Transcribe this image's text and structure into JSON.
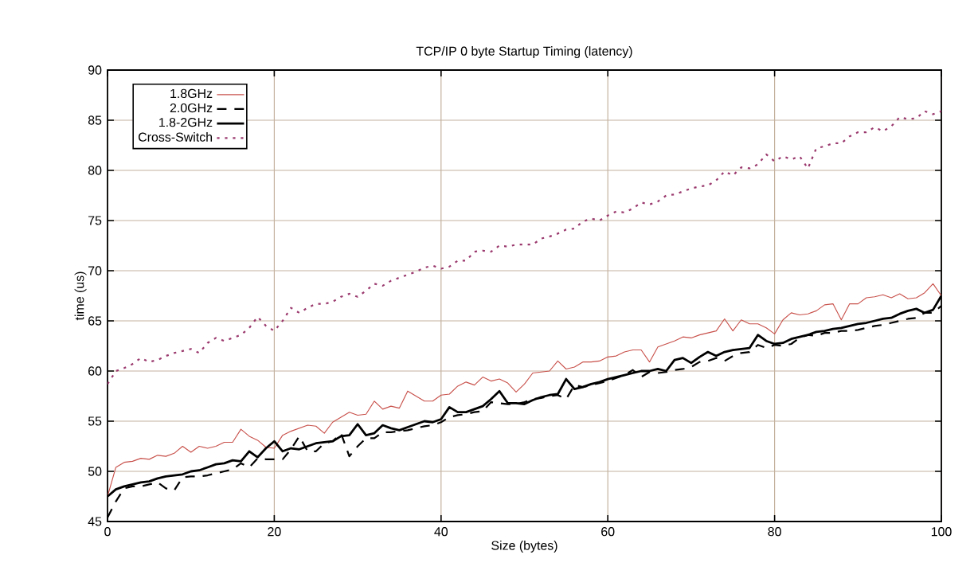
{
  "chart_data": {
    "type": "line",
    "title": "TCP/IP 0 byte Startup Timing (latency)",
    "xlabel": "Size (bytes)",
    "ylabel": "time (us)",
    "x": [
      0,
      1,
      2,
      3,
      4,
      5,
      6,
      7,
      8,
      9,
      10,
      11,
      12,
      13,
      14,
      15,
      16,
      17,
      18,
      19,
      20,
      21,
      22,
      23,
      24,
      25,
      26,
      27,
      28,
      29,
      30,
      31,
      32,
      33,
      34,
      35,
      36,
      37,
      38,
      39,
      40,
      41,
      42,
      43,
      44,
      45,
      46,
      47,
      48,
      49,
      50,
      51,
      52,
      53,
      54,
      55,
      56,
      57,
      58,
      59,
      60,
      61,
      62,
      63,
      64,
      65,
      66,
      67,
      68,
      69,
      70,
      71,
      72,
      73,
      74,
      75,
      76,
      77,
      78,
      79,
      80,
      81,
      82,
      83,
      84,
      85,
      86,
      87,
      88,
      89,
      90,
      91,
      92,
      93,
      94,
      95,
      96,
      97,
      98,
      99,
      100
    ],
    "series": [
      {
        "name": "1.8GHz",
        "color": "#c8504a",
        "line_style": "solid",
        "values": [
          47.5,
          50.4,
          50.9,
          51.0,
          51.3,
          51.2,
          51.6,
          51.5,
          51.8,
          52.5,
          51.9,
          52.5,
          52.3,
          52.5,
          52.9,
          52.9,
          54.2,
          53.5,
          53.1,
          52.4,
          52.3,
          53.6,
          54.0,
          54.3,
          54.6,
          54.5,
          53.8,
          54.9,
          55.4,
          55.9,
          55.6,
          55.7,
          57.0,
          56.2,
          56.5,
          56.3,
          58.0,
          57.5,
          57.0,
          57.0,
          57.6,
          57.7,
          58.5,
          58.9,
          58.6,
          59.4,
          59.0,
          59.2,
          58.8,
          57.9,
          58.7,
          59.8,
          59.9,
          60.0,
          61.0,
          60.2,
          60.4,
          60.9,
          60.9,
          61.0,
          61.4,
          61.5,
          61.9,
          62.1,
          62.1,
          60.9,
          62.4,
          62.7,
          63.0,
          63.4,
          63.3,
          63.6,
          63.8,
          64.0,
          65.2,
          64.0,
          65.1,
          64.7,
          64.7,
          64.3,
          63.7,
          65.1,
          65.8,
          65.6,
          65.7,
          66.0,
          66.6,
          66.7,
          65.1,
          66.7,
          66.7,
          67.3,
          67.4,
          67.6,
          67.3,
          67.7,
          67.2,
          67.3,
          67.8,
          68.7,
          67.5
        ]
      },
      {
        "name": "2.0GHz",
        "color": "#000000",
        "line_style": "dashed",
        "values": [
          45.4,
          47.0,
          48.3,
          48.5,
          48.5,
          48.7,
          48.9,
          48.3,
          48.1,
          49.4,
          49.5,
          49.5,
          49.6,
          49.8,
          50.0,
          50.2,
          50.8,
          50.4,
          51.3,
          51.2,
          51.2,
          51.2,
          52.2,
          53.5,
          52.0,
          52.0,
          52.8,
          53.0,
          53.8,
          51.5,
          52.5,
          53.3,
          53.3,
          53.9,
          53.9,
          54.0,
          54.1,
          54.3,
          54.5,
          54.6,
          54.9,
          55.4,
          55.6,
          55.7,
          55.9,
          56.0,
          56.9,
          56.8,
          56.7,
          56.7,
          56.9,
          57.2,
          57.3,
          57.5,
          57.6,
          57.2,
          58.6,
          58.4,
          58.6,
          58.8,
          59.0,
          59.3,
          59.6,
          60.1,
          59.4,
          59.9,
          59.8,
          59.9,
          60.1,
          60.2,
          60.4,
          60.9,
          61.0,
          61.3,
          61.0,
          61.5,
          61.8,
          61.9,
          62.6,
          62.3,
          62.6,
          62.5,
          62.7,
          63.3,
          63.6,
          63.5,
          63.8,
          63.8,
          64.0,
          64.0,
          64.1,
          64.3,
          64.5,
          64.6,
          64.8,
          65.0,
          65.2,
          65.3,
          65.8,
          65.8,
          66.5
        ]
      },
      {
        "name": "1.8-2GHz",
        "color": "#000000",
        "line_style": "solid",
        "values": [
          47.5,
          48.2,
          48.5,
          48.7,
          48.9,
          49.0,
          49.3,
          49.5,
          49.6,
          49.7,
          50.0,
          50.1,
          50.4,
          50.7,
          50.8,
          51.1,
          51.0,
          52.0,
          51.4,
          52.3,
          53.0,
          52.0,
          52.3,
          52.2,
          52.5,
          52.8,
          52.9,
          53.0,
          53.5,
          53.6,
          54.7,
          53.6,
          53.8,
          54.6,
          54.3,
          54.1,
          54.4,
          54.7,
          55.0,
          54.9,
          55.2,
          56.4,
          55.9,
          55.9,
          56.2,
          56.5,
          57.2,
          58.0,
          56.8,
          56.8,
          56.7,
          57.1,
          57.4,
          57.6,
          57.7,
          59.2,
          58.2,
          58.4,
          58.7,
          58.9,
          59.2,
          59.4,
          59.6,
          59.8,
          60.0,
          60.0,
          60.2,
          60.0,
          61.1,
          61.3,
          60.8,
          61.4,
          61.9,
          61.5,
          61.9,
          62.1,
          62.2,
          62.3,
          63.6,
          63.0,
          62.7,
          62.8,
          63.2,
          63.4,
          63.6,
          63.9,
          64.0,
          64.2,
          64.3,
          64.5,
          64.7,
          64.8,
          65.0,
          65.2,
          65.3,
          65.7,
          66.0,
          66.2,
          65.8,
          66.1,
          67.5
        ]
      },
      {
        "name": "Cross-Switch",
        "color": "#9b3a6e",
        "line_style": "dotted",
        "values": [
          58.7,
          60.0,
          60.3,
          60.7,
          61.3,
          60.9,
          61.1,
          61.5,
          61.8,
          62.0,
          62.2,
          61.8,
          62.8,
          63.3,
          63.0,
          63.3,
          63.6,
          64.3,
          65.4,
          64.5,
          64.0,
          65.0,
          66.3,
          65.8,
          66.3,
          66.7,
          66.7,
          66.9,
          67.4,
          67.7,
          67.4,
          68.0,
          68.7,
          68.5,
          69.0,
          69.3,
          69.6,
          69.9,
          70.3,
          70.5,
          70.2,
          70.4,
          71.0,
          71.0,
          71.9,
          72.0,
          71.9,
          72.5,
          72.4,
          72.6,
          72.6,
          72.6,
          73.2,
          73.4,
          73.7,
          74.1,
          74.2,
          74.9,
          75.2,
          75.0,
          75.5,
          75.9,
          75.8,
          76.2,
          76.8,
          76.6,
          76.9,
          77.5,
          77.6,
          77.9,
          78.2,
          78.4,
          78.5,
          79.0,
          79.9,
          79.5,
          80.3,
          80.2,
          80.6,
          81.6,
          80.9,
          81.4,
          81.1,
          81.4,
          80.2,
          82.2,
          82.4,
          82.7,
          82.7,
          83.4,
          83.8,
          83.8,
          84.3,
          83.9,
          84.4,
          85.3,
          85.1,
          85.2,
          85.9,
          85.6,
          85.9
        ]
      }
    ],
    "xlim": [
      0,
      100
    ],
    "xticks": [
      0,
      20,
      40,
      60,
      80,
      100
    ],
    "ylim": [
      45,
      90
    ],
    "yticks": [
      45,
      50,
      55,
      60,
      65,
      70,
      75,
      80,
      85,
      90
    ],
    "grid": true,
    "legend": "top left",
    "marker": "none"
  }
}
